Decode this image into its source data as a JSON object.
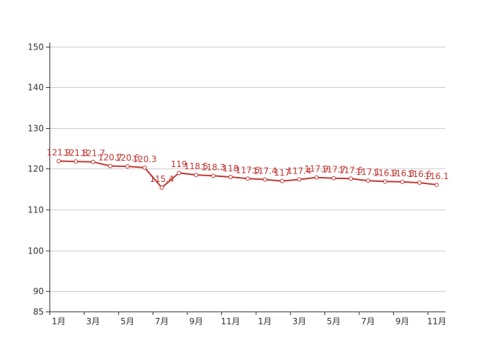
{
  "chart_data": {
    "type": "line",
    "title": "",
    "xlabel": "",
    "ylabel": "",
    "ylim": [
      85,
      151
    ],
    "y_ticks": [
      85,
      90,
      100,
      110,
      120,
      130,
      140,
      150
    ],
    "grid": true,
    "legend": "none",
    "x_tick_labels": [
      "1月",
      "3月",
      "5月",
      "7月",
      "9月",
      "11月",
      "1月",
      "3月",
      "5月",
      "7月",
      "9月",
      "11月"
    ],
    "series": [
      {
        "color": "#c23531",
        "values": [
          121.9,
          121.8,
          121.7,
          120.7,
          120.6,
          120.3,
          115.4,
          119,
          118.5,
          118.3,
          118,
          117.6,
          117.4,
          117,
          117.4,
          117.9,
          117.7,
          117.6,
          117.1,
          116.9,
          116.8,
          116.6,
          116.1
        ]
      }
    ]
  }
}
